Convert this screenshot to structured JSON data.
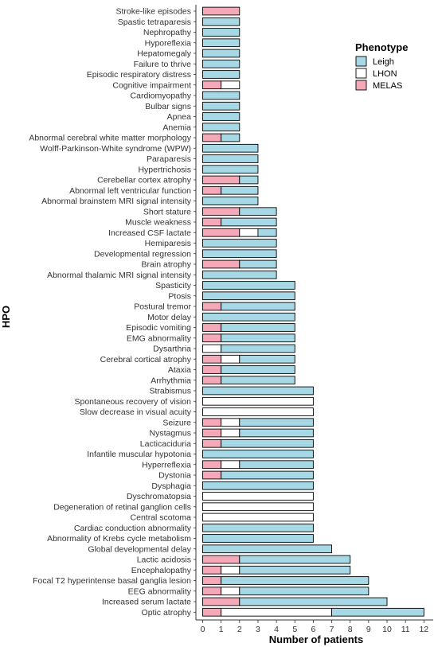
{
  "chart_data": {
    "type": "bar",
    "orientation": "horizontal",
    "stacked": true,
    "xlabel": "Number of patients",
    "ylabel": "HPO",
    "xlim": [
      0,
      12
    ],
    "xticks": [
      "0",
      "1",
      "2",
      "3",
      "4",
      "5",
      "6",
      "7",
      "8",
      "9",
      "10",
      "11",
      "12"
    ],
    "grid": false,
    "legend": {
      "title": "Phenotype",
      "position": "right",
      "entries": [
        "Leigh",
        "LHON",
        "MELAS"
      ]
    },
    "colors": {
      "Leigh": "#a6d8e6",
      "LHON": "#ffffff",
      "MELAS": "#f4a8b8"
    },
    "stack_order": [
      "MELAS",
      "LHON",
      "Leigh"
    ],
    "categories": [
      "Stroke-like episodes",
      "Spastic tetraparesis",
      "Nephropathy",
      "Hyporeflexia",
      "Hepatomegaly",
      "Failure to thrive",
      "Episodic respiratory distress",
      "Cognitive impairment",
      "Cardiomyopathy",
      "Bulbar signs",
      "Apnea",
      "Anemia",
      "Abnormal cerebral white matter morphology",
      "Wolff-Parkinson-White syndrome (WPW)",
      "Paraparesis",
      "Hypertrichosis",
      "Cerebellar cortex atrophy",
      "Abnormal left ventricular function",
      "Abnormal brainstem MRI signal intensity",
      "Short stature",
      "Muscle weakness",
      "Increased CSF lactate",
      "Hemiparesis",
      "Developmental regression",
      "Brain atrophy",
      "Abnormal thalamic MRI signal intensity",
      "Spasticity",
      "Ptosis",
      "Postural tremor",
      "Motor delay",
      "Episodic vomiting",
      "EMG abnormality",
      "Dysarthria",
      "Cerebral cortical atrophy",
      "Ataxia",
      "Arrhythmia",
      "Strabismus",
      "Spontaneous recovery of vision",
      "Slow decrease in visual acuity",
      "Seizure",
      "Nystagmus",
      "Lacticaciduria",
      "Infantile muscular hypotonia",
      "Hyperreflexia",
      "Dystonia",
      "Dysphagia",
      "Dyschromatopsia",
      "Degeneration of retinal ganglion cells",
      "Central scotoma",
      "Cardiac conduction abnormality",
      "Abnormality of Krebs cycle metabolism",
      "Global developmental delay",
      "Lactic acidosis",
      "Encephalopathy",
      "Focal T2 hyperintense basal ganglia lesion",
      "EEG abnormality",
      "Increased serum lactate",
      "Optic atrophy"
    ],
    "series": [
      {
        "name": "MELAS",
        "values": [
          2,
          0,
          0,
          0,
          0,
          0,
          0,
          1,
          0,
          0,
          0,
          0,
          1,
          0,
          0,
          0,
          2,
          1,
          0,
          2,
          1,
          2,
          0,
          0,
          2,
          0,
          0,
          0,
          1,
          0,
          1,
          1,
          0,
          1,
          1,
          1,
          0,
          0,
          0,
          1,
          1,
          1,
          0,
          1,
          1,
          0,
          0,
          0,
          0,
          0,
          0,
          0,
          2,
          1,
          1,
          1,
          2,
          1
        ]
      },
      {
        "name": "LHON",
        "values": [
          0,
          0,
          0,
          0,
          0,
          0,
          0,
          1,
          0,
          0,
          0,
          0,
          0,
          0,
          0,
          0,
          0,
          0,
          0,
          0,
          0,
          1,
          0,
          0,
          0,
          0,
          0,
          0,
          0,
          0,
          0,
          0,
          1,
          1,
          0,
          0,
          0,
          6,
          6,
          1,
          1,
          0,
          0,
          1,
          0,
          0,
          6,
          6,
          6,
          0,
          0,
          0,
          0,
          1,
          0,
          1,
          0,
          6
        ]
      },
      {
        "name": "Leigh",
        "values": [
          0,
          2,
          2,
          2,
          2,
          2,
          2,
          0,
          2,
          2,
          2,
          2,
          1,
          3,
          3,
          3,
          1,
          2,
          3,
          2,
          3,
          1,
          4,
          4,
          2,
          4,
          5,
          5,
          4,
          5,
          4,
          4,
          4,
          3,
          4,
          4,
          6,
          0,
          0,
          4,
          4,
          5,
          6,
          4,
          5,
          6,
          0,
          0,
          0,
          6,
          6,
          7,
          6,
          6,
          8,
          7,
          8,
          5
        ]
      }
    ]
  }
}
